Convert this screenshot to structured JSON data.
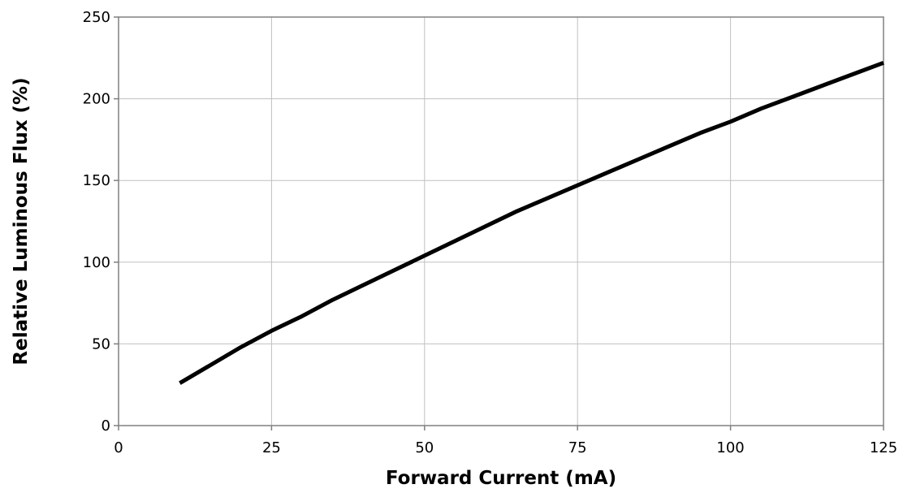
{
  "chart_data": {
    "type": "line",
    "title": "",
    "xlabel": "Forward Current (mA)",
    "ylabel": "Relative Luminous Flux (%)",
    "xlim": [
      0,
      125
    ],
    "ylim": [
      0,
      250
    ],
    "xticks": [
      0,
      25,
      50,
      75,
      100,
      125
    ],
    "yticks": [
      0,
      50,
      100,
      150,
      200,
      250
    ],
    "x_tick_labels": [
      "0",
      "25",
      "50",
      "75",
      "100",
      "125"
    ],
    "y_tick_labels": [
      "0",
      "50",
      "100",
      "150",
      "200",
      "250"
    ],
    "grid": true,
    "legend": "none",
    "series": [
      {
        "color": "#000000",
        "x": [
          10,
          15,
          20,
          25,
          30,
          35,
          40,
          45,
          50,
          55,
          60,
          65,
          70,
          75,
          80,
          85,
          90,
          95,
          100,
          105,
          110,
          115,
          120,
          125
        ],
        "y": [
          26,
          37,
          48,
          58,
          67,
          77,
          86,
          95,
          104,
          113,
          122,
          131,
          139,
          147,
          155,
          163,
          171,
          179,
          186,
          194,
          201,
          208,
          215,
          222
        ]
      }
    ]
  }
}
